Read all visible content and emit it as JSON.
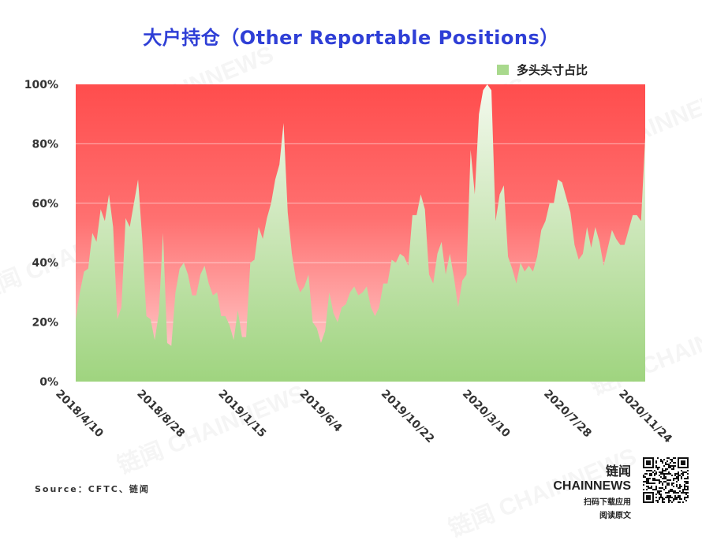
{
  "title": "大户持仓（Other Reportable Positions）",
  "legend": {
    "label": "多头头寸占比",
    "color": "#a9d98d"
  },
  "source": "Source：CFTC、链闻",
  "brand": {
    "name": "链闻 CHAINNEWS",
    "line1": "扫码下载应用",
    "line2": "阅读原文"
  },
  "watermark": "链闻 CHAINNEWS",
  "colors": {
    "long_fill": "#a9d98d",
    "short_top": "#ff4d4d",
    "short_bottom": "#ffd6d6",
    "title": "#2f3fd6"
  },
  "chart_data": {
    "type": "area",
    "title": "大户持仓（Other Reportable Positions）",
    "series": [
      {
        "name": "多头头寸占比",
        "values": [
          21,
          30,
          37,
          38,
          50,
          47,
          58,
          54,
          63,
          52,
          21,
          25,
          55,
          52,
          60,
          68,
          48,
          22,
          21,
          14,
          23,
          50,
          13,
          12,
          30,
          38,
          40,
          36,
          29,
          29,
          36,
          39,
          33,
          29,
          30,
          22,
          22,
          19,
          14,
          24,
          15,
          15,
          40,
          41,
          52,
          48,
          55,
          60,
          68,
          73,
          87,
          57,
          43,
          34,
          30,
          32,
          36,
          20,
          18,
          13,
          17,
          30,
          23,
          20,
          25,
          26,
          30,
          32,
          29,
          30,
          32,
          25,
          22,
          25,
          33,
          33,
          41,
          40,
          43,
          42,
          39,
          56,
          56,
          63,
          58,
          36,
          33,
          43,
          47,
          36,
          43,
          35,
          25,
          34,
          36,
          78,
          63,
          90,
          98,
          100,
          98,
          54,
          63,
          66,
          42,
          38,
          33,
          40,
          37,
          39,
          37,
          42,
          51,
          54,
          60,
          60,
          68,
          67,
          62,
          57,
          46,
          41,
          43,
          52,
          45,
          52,
          47,
          39,
          45,
          51,
          48,
          46,
          46,
          51,
          56,
          56,
          54,
          82
        ]
      }
    ],
    "x_tick_labels": [
      "2018/4/10",
      "2018/8/28",
      "2019/1/15",
      "2019/6/4",
      "2019/10/22",
      "2020/3/10",
      "2020/7/28",
      "2020/11/24"
    ],
    "y_tick_labels": [
      "0%",
      "20%",
      "40%",
      "60%",
      "80%",
      "100%"
    ],
    "ylim": [
      0,
      100
    ],
    "grid": true,
    "legend_position": "top-right"
  }
}
